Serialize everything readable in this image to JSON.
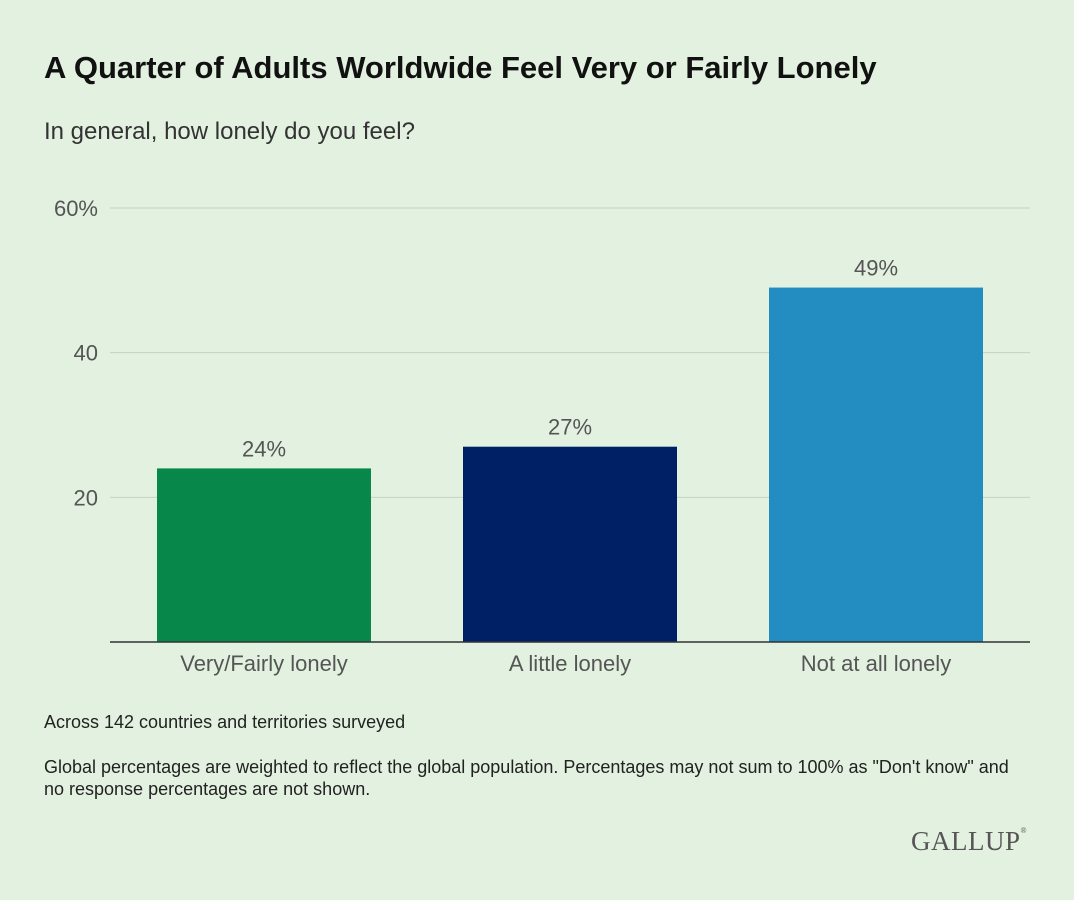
{
  "title": "A Quarter of Adults Worldwide Feel Very or Fairly Lonely",
  "subtitle": "In general, how lonely do you feel?",
  "chart_data": {
    "type": "bar",
    "categories": [
      "Very/Fairly lonely",
      "A little lonely",
      "Not at all lonely"
    ],
    "values": [
      24,
      27,
      49
    ],
    "data_labels": [
      "24%",
      "27%",
      "49%"
    ],
    "colors": [
      "#07874a",
      "#002066",
      "#238dc1"
    ],
    "ylim": [
      0,
      60
    ],
    "yticks": [
      20,
      40,
      60
    ],
    "ytick_labels": [
      "20",
      "40",
      "60%"
    ],
    "grid": true
  },
  "notes": [
    "Across 142 countries and territories surveyed",
    "Global percentages are weighted to reflect the global population. Percentages may not sum to 100% as \"Don't know\" and no response percentages are not shown."
  ],
  "logo": "GALLUP"
}
